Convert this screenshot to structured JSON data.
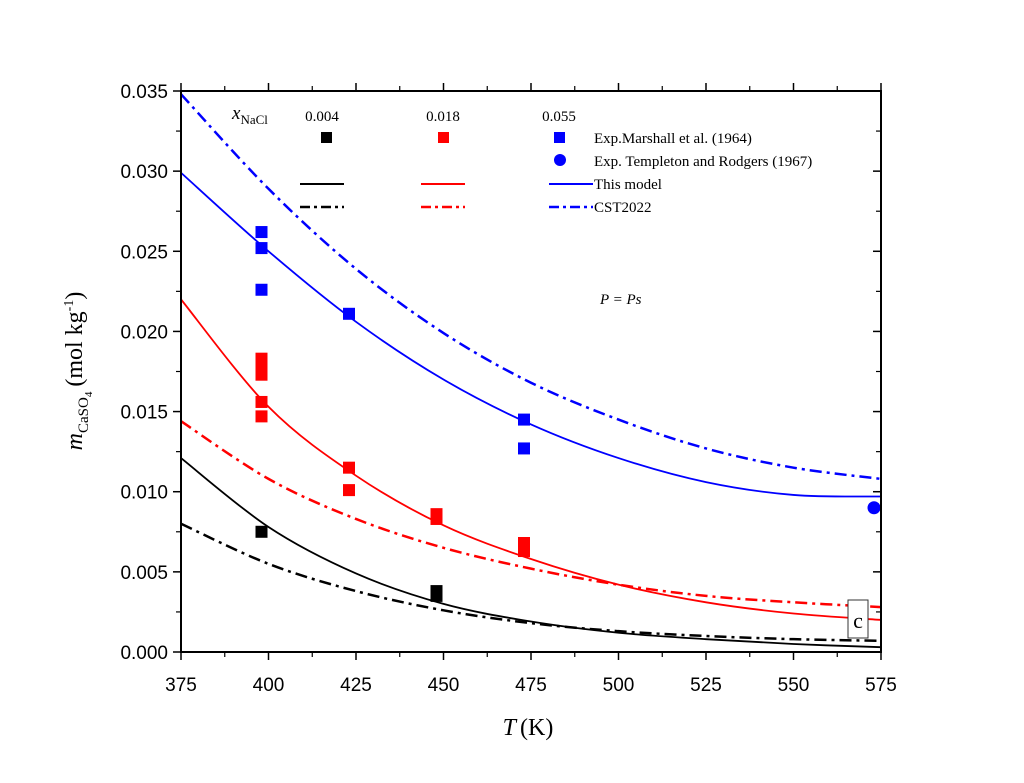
{
  "chart_data": {
    "type": "scatter",
    "title": "",
    "panel_label": "c",
    "annotation": "P = Ps",
    "xlabel": "T (K)",
    "xlabel_var": "T",
    "xlabel_unit": "(K)",
    "ylabel": "m_CaSO4 (mol kg^-1)",
    "ylabel_var": "m",
    "ylabel_sub": "CaSO",
    "ylabel_sub4": "4",
    "ylabel_unit": "(mol kg",
    "ylabel_exp": "-1",
    "ylabel_close": ")",
    "xlim": [
      375,
      575
    ],
    "ylim": [
      0.0,
      0.035
    ],
    "xticks": [
      375,
      400,
      425,
      450,
      475,
      500,
      525,
      550,
      575
    ],
    "xtick_labels": [
      "375",
      "400",
      "425",
      "450",
      "475",
      "500",
      "525",
      "550",
      "575"
    ],
    "yticks": [
      0.0,
      0.005,
      0.01,
      0.015,
      0.02,
      0.025,
      0.03,
      0.035
    ],
    "ytick_labels": [
      "0.000",
      "0.005",
      "0.010",
      "0.015",
      "0.020",
      "0.025",
      "0.030",
      "0.035"
    ],
    "grid": false,
    "legend": {
      "placement": "top",
      "header_var": "x",
      "header_sub": "NaCl",
      "columns": [
        "0.004",
        "0.018",
        "0.055"
      ],
      "column_colors": [
        "#000000",
        "#ff0000",
        "#0000ff"
      ],
      "rows": [
        {
          "marker": "square",
          "label": "Exp.Marshall et al. (1964)",
          "columns": [
            0,
            1,
            2
          ]
        },
        {
          "marker": "circle",
          "label": "Exp. Templeton and Rodgers (1967)",
          "columns": [
            2
          ]
        },
        {
          "marker": "solid-line",
          "label": "This model",
          "columns": [
            0,
            1,
            2
          ]
        },
        {
          "marker": "dashdot-line",
          "label": "CST2022",
          "columns": [
            0,
            1,
            2
          ]
        }
      ]
    },
    "series": [
      {
        "name": "Exp.Marshall et al. (1964) x=0.004",
        "kind": "points",
        "marker": "square",
        "color": "#000000",
        "x": [
          398,
          448,
          448
        ],
        "y": [
          0.0075,
          0.0038,
          0.0035
        ]
      },
      {
        "name": "Exp.Marshall et al. (1964) x=0.018",
        "kind": "points",
        "marker": "square",
        "color": "#ff0000",
        "x": [
          398,
          398,
          398,
          398,
          398,
          423,
          423,
          448,
          448,
          473,
          473
        ],
        "y": [
          0.0183,
          0.0178,
          0.0173,
          0.0156,
          0.0147,
          0.0115,
          0.0101,
          0.0086,
          0.0083,
          0.0068,
          0.0063
        ]
      },
      {
        "name": "Exp.Marshall et al. (1964) x=0.055",
        "kind": "points",
        "marker": "square",
        "color": "#0000ff",
        "x": [
          398,
          398,
          398,
          423,
          473,
          473
        ],
        "y": [
          0.0262,
          0.0252,
          0.0226,
          0.0211,
          0.0145,
          0.0127
        ]
      },
      {
        "name": "Exp. Templeton and Rodgers (1967) x=0.055",
        "kind": "points",
        "marker": "circle",
        "color": "#0000ff",
        "x": [
          573
        ],
        "y": [
          0.009
        ]
      },
      {
        "name": "This model x=0.004",
        "kind": "line",
        "style": "solid",
        "color": "#000000",
        "x": [
          375,
          400,
          425,
          450,
          475,
          500,
          525,
          550,
          575
        ],
        "y": [
          0.0121,
          0.0078,
          0.0049,
          0.003,
          0.0019,
          0.0012,
          0.0008,
          0.0005,
          0.0003
        ]
      },
      {
        "name": "CST2022 x=0.004",
        "kind": "line",
        "style": "dashdot",
        "color": "#000000",
        "x": [
          375,
          400,
          425,
          450,
          475,
          500,
          525,
          550,
          575
        ],
        "y": [
          0.008,
          0.0055,
          0.0038,
          0.0026,
          0.0018,
          0.0013,
          0.001,
          0.0008,
          0.0007
        ]
      },
      {
        "name": "This model x=0.018",
        "kind": "line",
        "style": "solid",
        "color": "#ff0000",
        "x": [
          375,
          400,
          425,
          450,
          475,
          500,
          525,
          550,
          575
        ],
        "y": [
          0.022,
          0.0153,
          0.011,
          0.0079,
          0.0058,
          0.0042,
          0.0031,
          0.0024,
          0.002
        ]
      },
      {
        "name": "CST2022 x=0.018",
        "kind": "line",
        "style": "dashdot",
        "color": "#ff0000",
        "x": [
          375,
          400,
          425,
          450,
          475,
          500,
          525,
          550,
          575
        ],
        "y": [
          0.0144,
          0.0108,
          0.0083,
          0.0065,
          0.0052,
          0.0042,
          0.0035,
          0.0031,
          0.0028
        ]
      },
      {
        "name": "This model x=0.055",
        "kind": "line",
        "style": "solid",
        "color": "#0000ff",
        "x": [
          375,
          400,
          425,
          450,
          475,
          500,
          525,
          550,
          575
        ],
        "y": [
          0.0299,
          0.025,
          0.0206,
          0.017,
          0.0142,
          0.0121,
          0.0106,
          0.0098,
          0.0097
        ]
      },
      {
        "name": "CST2022 x=0.055",
        "kind": "line",
        "style": "dashdot",
        "color": "#0000ff",
        "x": [
          375,
          400,
          425,
          450,
          475,
          500,
          525,
          550,
          575
        ],
        "y": [
          0.0348,
          0.0289,
          0.0239,
          0.0199,
          0.0168,
          0.0145,
          0.0127,
          0.0115,
          0.0108
        ]
      }
    ]
  }
}
